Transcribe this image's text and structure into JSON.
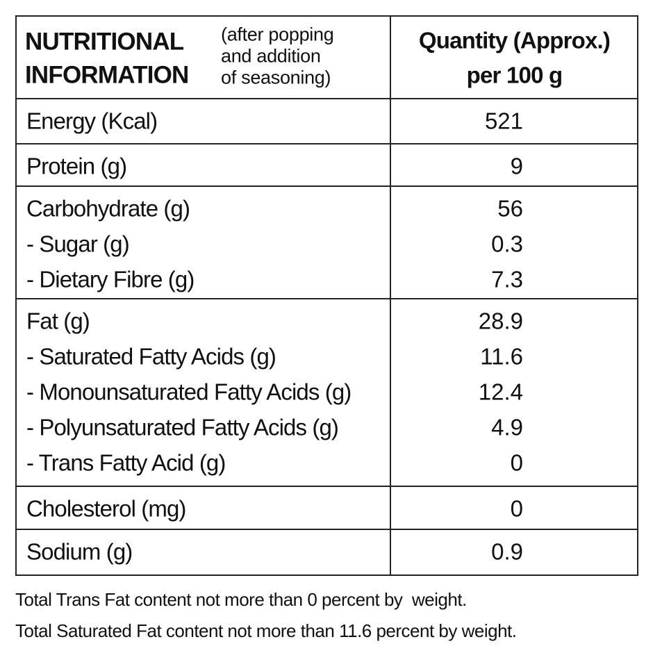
{
  "header": {
    "title": [
      "NUTRITIONAL",
      "INFORMATION"
    ],
    "note": [
      "(after popping",
      "and addition",
      "of seasoning)"
    ],
    "quantity": [
      "Quantity (Approx.)",
      "per 100 g"
    ]
  },
  "table": {
    "groups": [
      [
        {
          "label": "Energy (Kcal)",
          "value": "521"
        }
      ],
      [
        {
          "label": "Protein (g)",
          "value": "9"
        }
      ],
      [
        {
          "label": "Carbohydrate (g)",
          "value": "56"
        },
        {
          "label": "- Sugar (g)",
          "value": "0.3"
        },
        {
          "label": "- Dietary Fibre (g)",
          "value": "7.3"
        }
      ],
      [
        {
          "label": "Fat (g)",
          "value": "28.9"
        },
        {
          "label": "- Saturated Fatty Acids (g)",
          "value": "11.6"
        },
        {
          "label": "- Monounsaturated Fatty Acids (g)",
          "value": "12.4"
        },
        {
          "label": "- Polyunsaturated Fatty Acids (g)",
          "value": "4.9"
        },
        {
          "label": "- Trans Fatty Acid (g)",
          "value": "0"
        }
      ],
      [
        {
          "label": "Cholesterol (mg)",
          "value": "0"
        }
      ],
      [
        {
          "label": "Sodium (g)",
          "value": "0.9"
        }
      ]
    ]
  },
  "footer": [
    "Total Trans Fat content not more than 0 percent by  weight.",
    "Total Saturated Fat content not more than 11.6 percent by weight."
  ]
}
